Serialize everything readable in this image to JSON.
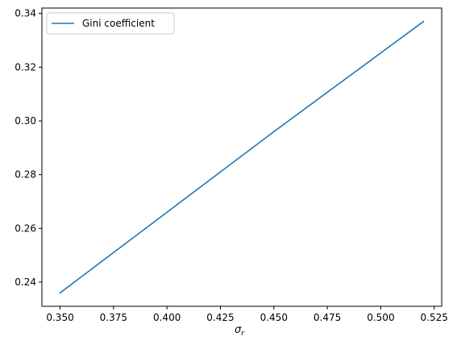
{
  "chart_data": {
    "type": "line",
    "title": "",
    "xlabel": "σ",
    "xlabel_subscript": "r",
    "ylabel": "",
    "xlim": [
      0.3415,
      0.5285
    ],
    "ylim": [
      0.231,
      0.342
    ],
    "xticks": [
      0.35,
      0.375,
      0.4,
      0.425,
      0.45,
      0.475,
      0.5,
      0.525
    ],
    "xtick_labels": [
      "0.350",
      "0.375",
      "0.400",
      "0.425",
      "0.450",
      "0.475",
      "0.500",
      "0.525"
    ],
    "yticks": [
      0.24,
      0.26,
      0.28,
      0.3,
      0.32,
      0.34
    ],
    "ytick_labels": [
      "0.24",
      "0.26",
      "0.28",
      "0.30",
      "0.32",
      "0.34"
    ],
    "grid": false,
    "legend_position": "upper-left",
    "series": [
      {
        "name": "Gini coefficient",
        "color": "#1f77b4",
        "x": [
          0.35,
          0.4,
          0.45,
          0.52
        ],
        "y": [
          0.236,
          0.266,
          0.296,
          0.337
        ]
      }
    ]
  }
}
